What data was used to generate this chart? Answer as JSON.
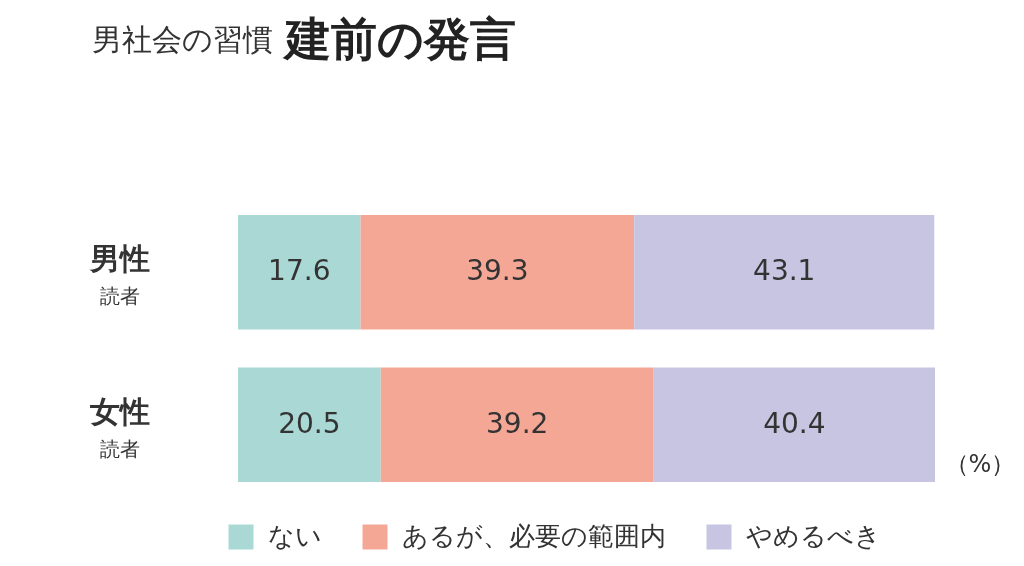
{
  "chart_data": {
    "type": "bar",
    "title": "建前の発言",
    "subtitle": "男社会の習慣",
    "orientation": "horizontal",
    "stacked": true,
    "categories": [
      "男性",
      "女性"
    ],
    "series": [
      {
        "name": "ない",
        "color": "#a9d8d5",
        "values": [
          17.6,
          20.5
        ]
      },
      {
        "name": "あるが、必要の範囲内",
        "color": "#f5a796",
        "values": [
          39.3,
          39.2
        ]
      },
      {
        "name": "やめるべき",
        "color": "#c7c5e1",
        "values": [
          43.1,
          40.4
        ]
      }
    ],
    "data_labels": true,
    "legend": "bottom",
    "tick_labels": "y",
    "annotations": [
      "読者",
      "読者",
      "（%）"
    ]
  }
}
